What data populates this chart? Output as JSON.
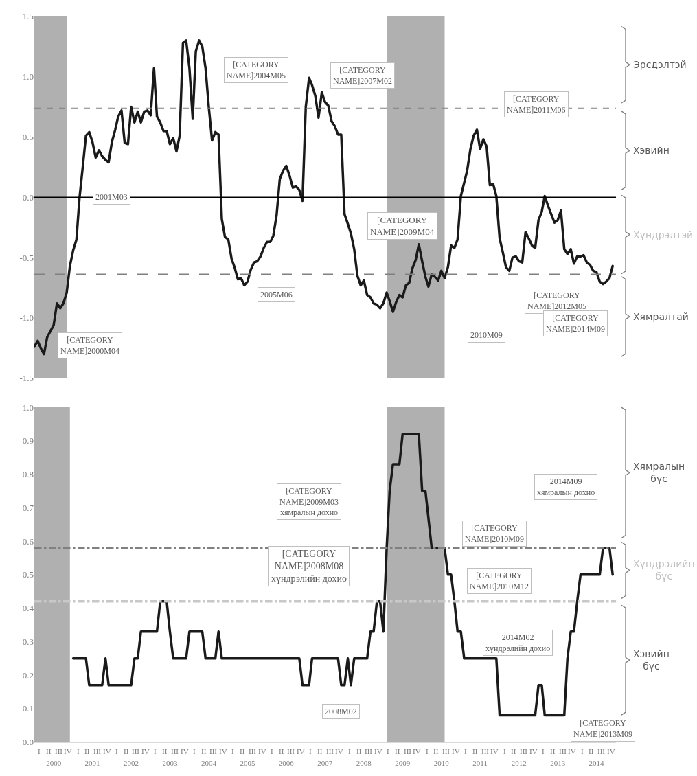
{
  "chart_data": [
    {
      "type": "line",
      "x": [
        "2000-01",
        "2000-02",
        "2000-03",
        "2000-04",
        "2000-05",
        "2000-06",
        "2000-07",
        "2000-08",
        "2000-09",
        "2000-10",
        "2000-11",
        "2000-12",
        "2001-01",
        "2001-02",
        "2001-03",
        "2001-04",
        "2001-05",
        "2001-06",
        "2001-07",
        "2001-08",
        "2001-09",
        "2001-10",
        "2001-11",
        "2001-12",
        "2002-01",
        "2002-02",
        "2002-03",
        "2002-04",
        "2002-05",
        "2002-06",
        "2002-07",
        "2002-08",
        "2002-09",
        "2002-10",
        "2002-11",
        "2002-12",
        "2003-01",
        "2003-02",
        "2003-03",
        "2003-04",
        "2003-05",
        "2003-06",
        "2003-07",
        "2003-08",
        "2003-09",
        "2003-10",
        "2003-11",
        "2003-12",
        "2004-01",
        "2004-02",
        "2004-03",
        "2004-04",
        "2004-05",
        "2004-06",
        "2004-07",
        "2004-08",
        "2004-09",
        "2004-10",
        "2004-11",
        "2004-12",
        "2005-01",
        "2005-02",
        "2005-03",
        "2005-04",
        "2005-05",
        "2005-06",
        "2005-07",
        "2005-08",
        "2005-09",
        "2005-10",
        "2005-11",
        "2005-12",
        "2006-01",
        "2006-02",
        "2006-03",
        "2006-04",
        "2006-05",
        "2006-06",
        "2006-07",
        "2006-08",
        "2006-09",
        "2006-10",
        "2006-11",
        "2006-12",
        "2007-01",
        "2007-02",
        "2007-03",
        "2007-04",
        "2007-05",
        "2007-06",
        "2007-07",
        "2007-08",
        "2007-09",
        "2007-10",
        "2007-11",
        "2007-12",
        "2008-01",
        "2008-02",
        "2008-03",
        "2008-04",
        "2008-05",
        "2008-06",
        "2008-07",
        "2008-08",
        "2008-09",
        "2008-10",
        "2008-11",
        "2008-12",
        "2009-01",
        "2009-02",
        "2009-03",
        "2009-04",
        "2009-05",
        "2009-06",
        "2009-07",
        "2009-08",
        "2009-09",
        "2009-10",
        "2009-11",
        "2009-12",
        "2010-01",
        "2010-02",
        "2010-03",
        "2010-04",
        "2010-05",
        "2010-06",
        "2010-07",
        "2010-08",
        "2010-09",
        "2010-10",
        "2010-11",
        "2010-12",
        "2011-01",
        "2011-02",
        "2011-03",
        "2011-04",
        "2011-05",
        "2011-06",
        "2011-07",
        "2011-08",
        "2011-09",
        "2011-10",
        "2011-11",
        "2011-12",
        "2012-01",
        "2012-02",
        "2012-03",
        "2012-04",
        "2012-05",
        "2012-06",
        "2012-07",
        "2012-08",
        "2012-09",
        "2012-10",
        "2012-11",
        "2012-12",
        "2013-01",
        "2013-02",
        "2013-03",
        "2013-04",
        "2013-05",
        "2013-06",
        "2013-07",
        "2013-08",
        "2013-09",
        "2013-10",
        "2013-11",
        "2013-12",
        "2014-01",
        "2014-02",
        "2014-03",
        "2014-04",
        "2014-05",
        "2014-06",
        "2014-07",
        "2014-08",
        "2014-09",
        "2014-10",
        "2014-11",
        "2014-12"
      ],
      "series": [
        {
          "color": "#1a1a1a",
          "values": [
            -1.24,
            -1.19,
            -1.25,
            -1.3,
            -1.16,
            -1.11,
            -1.06,
            -0.88,
            -0.92,
            -0.88,
            -0.79,
            -0.57,
            -0.44,
            -0.35,
            -0.01,
            0.25,
            0.51,
            0.54,
            0.46,
            0.33,
            0.39,
            0.34,
            0.31,
            0.29,
            0.46,
            0.56,
            0.67,
            0.72,
            0.45,
            0.44,
            0.75,
            0.62,
            0.71,
            0.62,
            0.71,
            0.72,
            0.68,
            1.07,
            0.67,
            0.62,
            0.55,
            0.55,
            0.44,
            0.49,
            0.38,
            0.51,
            1.28,
            1.3,
            1.07,
            0.65,
            1.21,
            1.3,
            1.25,
            1.07,
            0.75,
            0.47,
            0.54,
            0.52,
            -0.18,
            -0.33,
            -0.35,
            -0.51,
            -0.58,
            -0.68,
            -0.67,
            -0.73,
            -0.7,
            -0.6,
            -0.54,
            -0.53,
            -0.49,
            -0.42,
            -0.37,
            -0.37,
            -0.32,
            -0.15,
            0.15,
            0.22,
            0.26,
            0.18,
            0.08,
            0.09,
            0.06,
            -0.03,
            0.75,
            0.99,
            0.93,
            0.84,
            0.66,
            0.87,
            0.79,
            0.76,
            0.63,
            0.59,
            0.52,
            0.52,
            -0.14,
            -0.22,
            -0.3,
            -0.43,
            -0.65,
            -0.73,
            -0.69,
            -0.81,
            -0.83,
            -0.88,
            -0.89,
            -0.92,
            -0.88,
            -0.79,
            -0.86,
            -0.95,
            -0.87,
            -0.81,
            -0.83,
            -0.73,
            -0.71,
            -0.59,
            -0.52,
            -0.39,
            -0.53,
            -0.66,
            -0.74,
            -0.64,
            -0.66,
            -0.69,
            -0.61,
            -0.67,
            -0.58,
            -0.4,
            -0.42,
            -0.35,
            0.01,
            0.12,
            0.22,
            0.4,
            0.51,
            0.56,
            0.4,
            0.48,
            0.42,
            0.1,
            0.11,
            0.01,
            -0.34,
            -0.46,
            -0.58,
            -0.61,
            -0.5,
            -0.49,
            -0.53,
            -0.54,
            -0.29,
            -0.34,
            -0.4,
            -0.42,
            -0.19,
            -0.12,
            0.01,
            -0.07,
            -0.14,
            -0.21,
            -0.19,
            -0.11,
            -0.43,
            -0.47,
            -0.43,
            -0.55,
            -0.49,
            -0.49,
            -0.48,
            -0.54,
            -0.56,
            -0.61,
            -0.62,
            -0.7,
            -0.72,
            -0.7,
            -0.67,
            -0.57
          ]
        }
      ],
      "xlim": [
        "2000-01",
        "2015-01"
      ],
      "ylim": [
        -1.5,
        1.5
      ],
      "yticks": [
        1.5,
        {
          "value": 1,
          "label": "1.0"
        },
        0.5,
        {
          "value": 0,
          "label": "0.0"
        },
        -0.5,
        {
          "value": -1,
          "label": "-1.0"
        },
        -1.5
      ],
      "tick_labels": "y",
      "ref_lines": [
        {
          "axis": "y",
          "value": 0,
          "color": "#000000",
          "line_style": "solid"
        },
        {
          "axis": "y",
          "value": 0.74,
          "color": "#808080",
          "line_style": "dashed"
        },
        {
          "axis": "y",
          "value": -0.64,
          "color": "#808080",
          "line_style": "longdash"
        }
      ],
      "bands": [
        {
          "axis": "x",
          "from": "2000-01",
          "to": "2000-11",
          "color": "#b0b0b0"
        },
        {
          "axis": "x",
          "from": "2009-02",
          "to": "2010-08",
          "color": "#b0b0b0"
        }
      ],
      "annotations": [
        "[CATEGORY\nNAME]2004M05",
        "[CATEGORY\nNAME]2007M02",
        "[CATEGORY\nNAME]2011M06",
        "2001M03",
        "[CATEGORY\nNAME]2009M04",
        "2005M06",
        "[CATEGORY\nNAME]2012M05",
        "[CATEGORY\nNAME]2014M09",
        "2010M09",
        "[CATEGORY\nNAME]2000M04",
        "Эрсдэлтэй",
        "Хэвийн",
        "Хүндрэлтэй",
        "Хямралтай"
      ]
    },
    {
      "type": "line",
      "x": [
        "2001-01",
        "2001-02",
        "2001-03",
        "2001-04",
        "2001-05",
        "2001-06",
        "2001-07",
        "2001-08",
        "2001-09",
        "2001-10",
        "2001-11",
        "2001-12",
        "2002-01",
        "2002-02",
        "2002-03",
        "2002-04",
        "2002-05",
        "2002-06",
        "2002-07",
        "2002-08",
        "2002-09",
        "2002-10",
        "2002-11",
        "2002-12",
        "2003-01",
        "2003-02",
        "2003-03",
        "2003-04",
        "2003-05",
        "2003-06",
        "2003-07",
        "2003-08",
        "2003-09",
        "2003-10",
        "2003-11",
        "2003-12",
        "2004-01",
        "2004-02",
        "2004-03",
        "2004-04",
        "2004-05",
        "2004-06",
        "2004-07",
        "2004-08",
        "2004-09",
        "2004-10",
        "2004-11",
        "2004-12",
        "2005-01",
        "2005-02",
        "2005-03",
        "2005-04",
        "2005-05",
        "2005-06",
        "2005-07",
        "2005-08",
        "2005-09",
        "2005-10",
        "2005-11",
        "2005-12",
        "2006-01",
        "2006-02",
        "2006-03",
        "2006-04",
        "2006-05",
        "2006-06",
        "2006-07",
        "2006-08",
        "2006-09",
        "2006-10",
        "2006-11",
        "2006-12",
        "2007-01",
        "2007-02",
        "2007-03",
        "2007-04",
        "2007-05",
        "2007-06",
        "2007-07",
        "2007-08",
        "2007-09",
        "2007-10",
        "2007-11",
        "2007-12",
        "2008-01",
        "2008-02",
        "2008-03",
        "2008-04",
        "2008-05",
        "2008-06",
        "2008-07",
        "2008-08",
        "2008-09",
        "2008-10",
        "2008-11",
        "2008-12",
        "2009-01",
        "2009-02",
        "2009-03",
        "2009-04",
        "2009-05",
        "2009-06",
        "2009-07",
        "2009-08",
        "2009-09",
        "2009-10",
        "2009-11",
        "2009-12",
        "2010-01",
        "2010-02",
        "2010-03",
        "2010-04",
        "2010-05",
        "2010-06",
        "2010-07",
        "2010-08",
        "2010-09",
        "2010-10",
        "2010-11",
        "2010-12",
        "2011-01",
        "2011-02",
        "2011-03",
        "2011-04",
        "2011-05",
        "2011-06",
        "2011-07",
        "2011-08",
        "2011-09",
        "2011-10",
        "2011-11",
        "2011-12",
        "2012-01",
        "2012-02",
        "2012-03",
        "2012-04",
        "2012-05",
        "2012-06",
        "2012-07",
        "2012-08",
        "2012-09",
        "2012-10",
        "2012-11",
        "2012-12",
        "2013-01",
        "2013-02",
        "2013-03",
        "2013-04",
        "2013-05",
        "2013-06",
        "2013-07",
        "2013-08",
        "2013-09",
        "2013-10",
        "2013-11",
        "2013-12",
        "2014-01",
        "2014-02",
        "2014-03",
        "2014-04",
        "2014-05",
        "2014-06",
        "2014-07",
        "2014-08",
        "2014-09",
        "2014-10",
        "2014-11",
        "2014-12"
      ],
      "series": [
        {
          "color": "#1a1a1a",
          "values": [
            0.25,
            0.25,
            0.25,
            0.25,
            0.25,
            0.17,
            0.17,
            0.17,
            0.17,
            0.17,
            0.25,
            0.17,
            0.17,
            0.17,
            0.17,
            0.17,
            0.17,
            0.17,
            0.17,
            0.25,
            0.25,
            0.33,
            0.33,
            0.33,
            0.33,
            0.33,
            0.33,
            0.42,
            0.42,
            0.42,
            0.33,
            0.25,
            0.25,
            0.25,
            0.25,
            0.25,
            0.33,
            0.33,
            0.33,
            0.33,
            0.33,
            0.25,
            0.25,
            0.25,
            0.25,
            0.33,
            0.25,
            0.25,
            0.25,
            0.25,
            0.25,
            0.25,
            0.25,
            0.25,
            0.25,
            0.25,
            0.25,
            0.25,
            0.25,
            0.25,
            0.25,
            0.25,
            0.25,
            0.25,
            0.25,
            0.25,
            0.25,
            0.25,
            0.25,
            0.25,
            0.25,
            0.17,
            0.17,
            0.17,
            0.25,
            0.25,
            0.25,
            0.25,
            0.25,
            0.25,
            0.25,
            0.25,
            0.25,
            0.17,
            0.17,
            0.25,
            0.17,
            0.25,
            0.25,
            0.25,
            0.25,
            0.25,
            0.33,
            0.33,
            0.42,
            0.42,
            0.33,
            0.58,
            0.75,
            0.83,
            0.83,
            0.83,
            0.92,
            0.92,
            0.92,
            0.92,
            0.92,
            0.92,
            0.75,
            0.75,
            0.67,
            0.58,
            0.58,
            0.58,
            0.58,
            0.58,
            0.5,
            0.5,
            0.42,
            0.33,
            0.33,
            0.25,
            0.25,
            0.25,
            0.25,
            0.25,
            0.25,
            0.25,
            0.25,
            0.25,
            0.25,
            0.25,
            0.08,
            0.08,
            0.08,
            0.08,
            0.08,
            0.08,
            0.08,
            0.08,
            0.08,
            0.08,
            0.08,
            0.08,
            0.17,
            0.17,
            0.08,
            0.08,
            0.08,
            0.08,
            0.08,
            0.08,
            0.08,
            0.25,
            0.33,
            0.33,
            0.42,
            0.5,
            0.5,
            0.5,
            0.5,
            0.5,
            0.5,
            0.5,
            0.58,
            0.58,
            0.58,
            0.5
          ]
        }
      ],
      "xlim": [
        "2000-01",
        "2015-01"
      ],
      "xticks": [
        {
          "value": "2000-07-01",
          "label": "2000"
        },
        {
          "value": "2001-07-01",
          "label": "2001"
        },
        {
          "value": "2002-07-01",
          "label": "2002"
        },
        {
          "value": "2003-07-01",
          "label": "2003"
        },
        {
          "value": "2004-07-01",
          "label": "2004"
        },
        {
          "value": "2005-07-01",
          "label": "2005"
        },
        {
          "value": "2006-07-01",
          "label": "2006"
        },
        {
          "value": "2007-07-01",
          "label": "2007"
        },
        {
          "value": "2008-07-01",
          "label": "2008"
        },
        {
          "value": "2009-07-01",
          "label": "2009"
        },
        {
          "value": "2010-07-01",
          "label": "2010"
        },
        {
          "value": "2011-07-01",
          "label": "2011"
        },
        {
          "value": "2012-07-01",
          "label": "2012"
        },
        {
          "value": "2013-07-01",
          "label": "2013"
        },
        {
          "value": "2014-07-01",
          "label": "2014"
        }
      ],
      "ylim": [
        0,
        1
      ],
      "yticks": [
        {
          "value": 0,
          "label": "0.0"
        },
        0.1,
        0.2,
        0.3,
        0.4,
        0.5,
        0.6,
        0.7,
        0.8,
        0.9,
        {
          "value": 1,
          "label": "1.0"
        }
      ],
      "ref_lines": [
        {
          "axis": "y",
          "value": 0.58,
          "color": "#808080",
          "line_style": "dashdot"
        },
        {
          "axis": "y",
          "value": 0.42,
          "color": "#c8c8c8",
          "line_style": "dashdot"
        }
      ],
      "bands": [
        {
          "axis": "x",
          "from": "2000-01",
          "to": "2000-12",
          "color": "#b0b0b0"
        },
        {
          "axis": "x",
          "from": "2009-02",
          "to": "2010-08",
          "color": "#b0b0b0"
        }
      ],
      "annotations": [
        "[CATEGORY\nNAME]2009M03\nхямралын дохио",
        "[CATEGORY\nNAME]2008M08\nхүндрэлийн дохио",
        "2008M02",
        "2014M09\nхямралын дохио",
        "[CATEGORY\nNAME]2010M09",
        "[CATEGORY\nNAME]2010M12",
        "2014M02\nхүндрэлийн дохио",
        "[CATEGORY\nNAME]2013M09",
        "Хямралын\nбүс",
        "Хүндрэлийн\nбүс",
        "Хэвийн\nбүс",
        "I",
        "II",
        "III",
        "IV",
        "I",
        "II",
        "III",
        "IV",
        "I",
        "II",
        "III",
        "IV",
        "I",
        "II",
        "III",
        "IV",
        "I",
        "II",
        "III",
        "IV",
        "I",
        "II",
        "III",
        "IV",
        "I",
        "II",
        "III",
        "IV",
        "I",
        "II",
        "III",
        "IV",
        "I",
        "II",
        "III",
        "IV",
        "I",
        "II",
        "III",
        "IV",
        "I",
        "II",
        "III",
        "IV",
        "I",
        "II",
        "III",
        "IV",
        "I",
        "II",
        "III",
        "IV",
        "I",
        "II",
        "III",
        "IV",
        "I",
        "II",
        "III",
        "IV"
      ]
    }
  ]
}
